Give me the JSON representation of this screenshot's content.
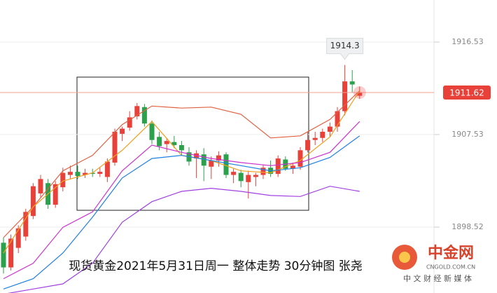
{
  "chart_data": {
    "type": "candlestick",
    "ylim": [
      1892.11,
      1920.62
    ],
    "yticks": [
      1916.53,
      1907.53,
      1898.52
    ],
    "grid": true,
    "up_color": "#e8413a",
    "down_color": "#2aa14a",
    "ohlc": [
      [
        1897.0,
        1897.5,
        1894.0,
        1894.6
      ],
      [
        1894.6,
        1897.8,
        1894.3,
        1897.4
      ],
      [
        1896.5,
        1898.7,
        1896.0,
        1898.4
      ],
      [
        1897.6,
        1900.3,
        1897.2,
        1900.0
      ],
      [
        1899.6,
        1902.8,
        1899.3,
        1902.5
      ],
      [
        1901.8,
        1903.6,
        1901.4,
        1903.2
      ],
      [
        1902.8,
        1903.2,
        1900.3,
        1900.7
      ],
      [
        1900.7,
        1903.0,
        1900.4,
        1902.7
      ],
      [
        1902.4,
        1904.3,
        1902.0,
        1903.8
      ],
      [
        1903.6,
        1904.5,
        1903.2,
        1903.9
      ],
      [
        1903.9,
        1904.5,
        1903.2,
        1903.5
      ],
      [
        1903.6,
        1904.2,
        1903.3,
        1903.8
      ],
      [
        1903.8,
        1904.2,
        1903.4,
        1903.7
      ],
      [
        1903.7,
        1904.3,
        1903.4,
        1903.9
      ],
      [
        1903.4,
        1905.2,
        1902.9,
        1904.9
      ],
      [
        1904.8,
        1908.1,
        1904.5,
        1907.8
      ],
      [
        1907.6,
        1908.3,
        1906.9,
        1908.1
      ],
      [
        1908.2,
        1909.8,
        1907.9,
        1909.2
      ],
      [
        1909.3,
        1910.6,
        1909.0,
        1910.3
      ],
      [
        1910.2,
        1910.5,
        1908.3,
        1908.6
      ],
      [
        1908.6,
        1908.9,
        1906.6,
        1907.0
      ],
      [
        1907.3,
        1907.8,
        1906.0,
        1906.4
      ],
      [
        1906.6,
        1907.2,
        1905.8,
        1906.9
      ],
      [
        1906.8,
        1907.4,
        1906.2,
        1906.5
      ],
      [
        1906.5,
        1906.9,
        1905.5,
        1906.0
      ],
      [
        1905.8,
        1906.3,
        1904.5,
        1904.9
      ],
      [
        1905.2,
        1906.0,
        1903.3,
        1905.7
      ],
      [
        1905.6,
        1906.2,
        1903.0,
        1904.5
      ],
      [
        1904.4,
        1905.4,
        1903.2,
        1905.0
      ],
      [
        1905.0,
        1905.9,
        1904.4,
        1905.5
      ],
      [
        1905.6,
        1905.8,
        1903.3,
        1903.6
      ],
      [
        1903.6,
        1904.2,
        1902.8,
        1903.9
      ],
      [
        1903.8,
        1904.1,
        1902.4,
        1903.0
      ],
      [
        1902.9,
        1904.0,
        1901.3,
        1903.6
      ],
      [
        1903.4,
        1903.8,
        1902.5,
        1903.6
      ],
      [
        1903.6,
        1904.6,
        1903.2,
        1904.3
      ],
      [
        1904.3,
        1905.0,
        1903.4,
        1903.7
      ],
      [
        1903.7,
        1905.5,
        1903.4,
        1905.2
      ],
      [
        1905.1,
        1905.4,
        1904.0,
        1904.2
      ],
      [
        1904.2,
        1904.8,
        1903.7,
        1904.5
      ],
      [
        1904.4,
        1906.3,
        1904.1,
        1906.0
      ],
      [
        1906.0,
        1907.8,
        1905.8,
        1907.0
      ],
      [
        1907.0,
        1907.8,
        1906.5,
        1907.2
      ],
      [
        1907.2,
        1908.1,
        1906.8,
        1907.8
      ],
      [
        1907.8,
        1908.7,
        1907.3,
        1908.3
      ],
      [
        1908.3,
        1910.2,
        1907.8,
        1909.8
      ],
      [
        1909.8,
        1914.3,
        1909.4,
        1912.7
      ],
      [
        1912.7,
        1913.8,
        1911.6,
        1912.4
      ],
      [
        1911.3,
        1912.2,
        1911.0,
        1911.62
      ]
    ],
    "lines": [
      {
        "color": "#e06040",
        "x": [
          0,
          4,
          8,
          12,
          16,
          20,
          24,
          28,
          32,
          36,
          40,
          44,
          48
        ],
        "values": [
          1897.5,
          1900.5,
          1904.0,
          1905.5,
          1908.5,
          1910.3,
          1910.1,
          1910.2,
          1909.5,
          1907.2,
          1907.4,
          1909.0,
          1911.8
        ]
      },
      {
        "color": "#f0a020",
        "x": [
          0,
          4,
          8,
          12,
          16,
          20,
          24,
          28,
          32,
          36,
          40,
          44,
          48
        ],
        "values": [
          1896.0,
          1900.5,
          1903.0,
          1903.8,
          1906.0,
          1908.8,
          1905.5,
          1905.0,
          1904.0,
          1903.8,
          1905.0,
          1907.3,
          1911.8
        ]
      },
      {
        "color": "#cc33cc",
        "x": [
          0,
          4,
          8,
          12,
          16,
          20,
          24,
          28,
          32,
          36,
          40,
          44,
          48
        ],
        "values": [
          1893.5,
          1895.0,
          1898.5,
          1900.0,
          1904.0,
          1906.5,
          1905.8,
          1905.2,
          1904.8,
          1904.5,
          1904.8,
          1905.8,
          1908.8
        ]
      },
      {
        "color": "#2080e0",
        "x": [
          0,
          4,
          8,
          12,
          16,
          20,
          24,
          28,
          32,
          36,
          40,
          44,
          48
        ],
        "values": [
          1892.5,
          1893.5,
          1896.0,
          1899.5,
          1903.3,
          1905.2,
          1905.5,
          1905.0,
          1904.5,
          1904.0,
          1904.3,
          1905.3,
          1907.4
        ]
      },
      {
        "color": "#a040e0",
        "x": [
          0,
          4,
          8,
          12,
          16,
          20,
          24,
          28,
          32,
          36,
          40,
          44,
          48
        ],
        "values": [
          1892.0,
          1892.5,
          1893.0,
          1895.0,
          1899.0,
          1901.0,
          1902.0,
          1902.3,
          1902.0,
          1901.6,
          1901.5,
          1902.5,
          1902.0
        ]
      }
    ],
    "last_price": 1911.62,
    "high_label": 1914.3,
    "caption": "现货黄金2021年5月31日周一 整体走势 30分钟图 张尧"
  },
  "logo": {
    "name": "中金网",
    "url": "CNGOLD.COM.CN",
    "slogan": "中 文 财 经 新 媒 体"
  }
}
